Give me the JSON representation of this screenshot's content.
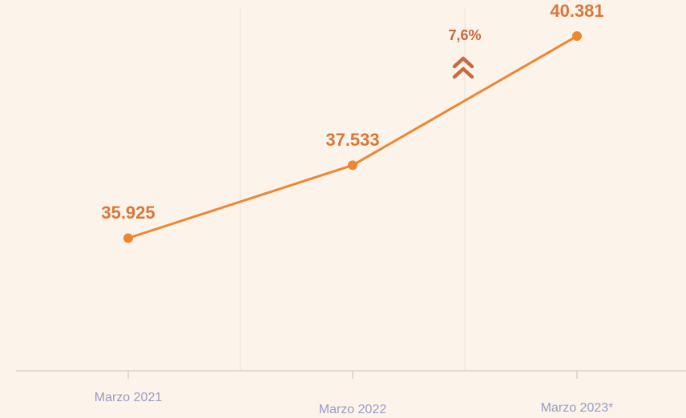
{
  "chart_data": {
    "type": "line",
    "categories": [
      "Marzo 2021",
      "Marzo 2022",
      "Marzo 2023*"
    ],
    "series": [
      {
        "color": "#ef8632",
        "values": [
          35925,
          37533,
          40381
        ],
        "value_labels": [
          "35.925",
          "37.533",
          "40.381"
        ]
      }
    ],
    "ylim": [
      33000,
      41000
    ],
    "annotation": "7,6%"
  }
}
